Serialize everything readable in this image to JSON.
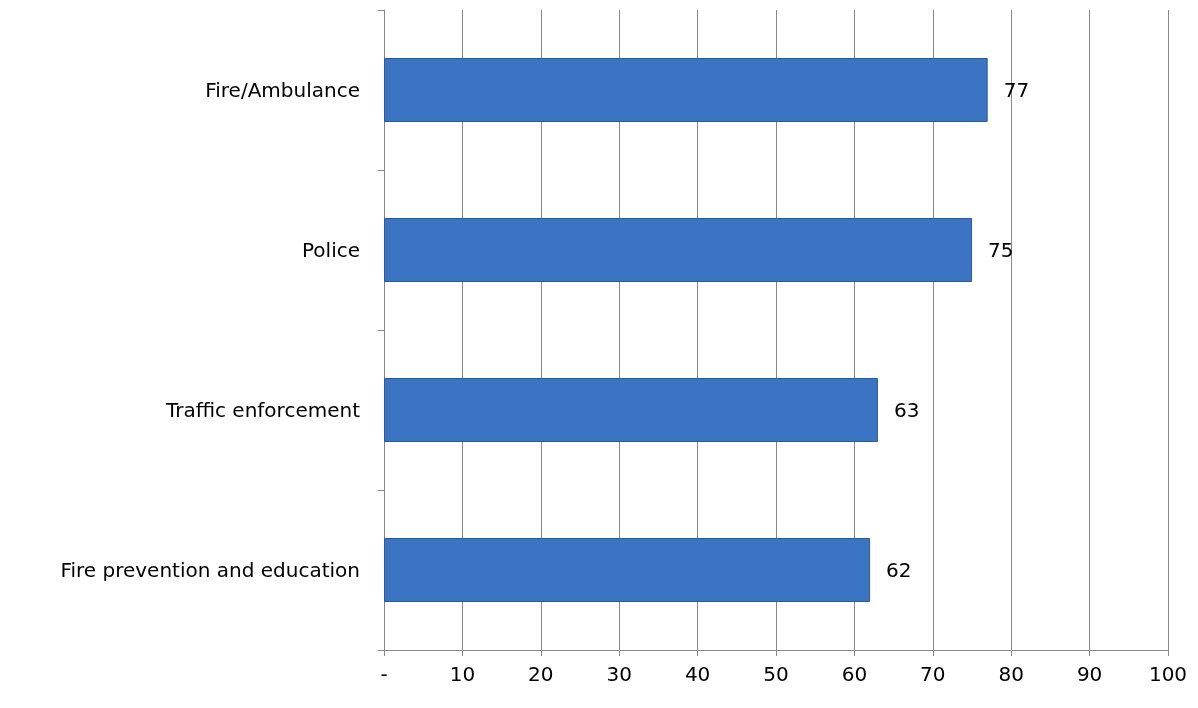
{
  "chart_data": {
    "type": "bar",
    "orientation": "horizontal",
    "categories": [
      "Fire/Ambulance",
      "Police",
      "Traffic enforcement",
      "Fire prevention and education"
    ],
    "values": [
      77,
      75,
      63,
      62
    ],
    "color": "#3b74c2",
    "xlim": [
      0,
      100
    ],
    "xticks": [
      {
        "value": 0,
        "label": "-"
      },
      10,
      20,
      30,
      40,
      50,
      60,
      70,
      80,
      90,
      100
    ],
    "grid": "x",
    "data_labels": true
  }
}
